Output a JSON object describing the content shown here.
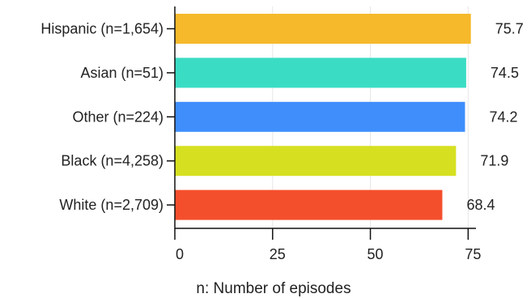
{
  "chart_data": {
    "type": "bar",
    "orientation": "horizontal",
    "categories": [
      "Hispanic (n=1,654)",
      "Asian (n=51)",
      "Other (n=224)",
      "Black (n=4,258)",
      "White (n=2,709)"
    ],
    "values": [
      75.7,
      74.5,
      74.2,
      71.9,
      68.4
    ],
    "value_labels": [
      "75.7",
      "74.5",
      "74.2",
      "71.9",
      "68.4"
    ],
    "colors": [
      "#f6b92b",
      "#3bdcc4",
      "#3f8efc",
      "#d6e021",
      "#f44f2c"
    ],
    "xlim": [
      0,
      77
    ],
    "xticks": [
      0,
      25,
      50,
      75
    ],
    "xtick_labels": [
      "0",
      "25",
      "50",
      "75"
    ],
    "grid": "vertical",
    "legend": "none",
    "caption": "n: Number of episodes"
  }
}
